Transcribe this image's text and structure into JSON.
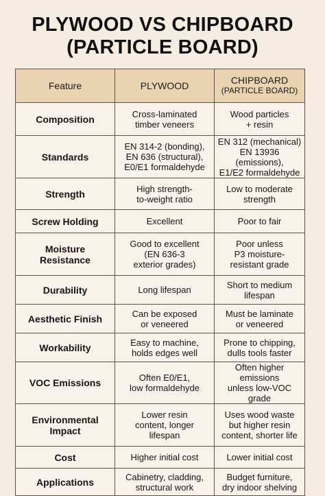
{
  "title": {
    "line1": "PLYWOOD VS CHIPBOARD",
    "line2": "(PARTICLE BOARD)"
  },
  "table": {
    "headers": {
      "feature": "Feature",
      "plywood": "PLYWOOD",
      "chipboard": "CHIPBOARD",
      "chipboard_sub": "(PARTICLE BOARD)"
    },
    "rows": [
      {
        "feature": "Composition",
        "plywood": "Cross-laminated\ntimber veneers",
        "chipboard": "Wood particles\n+ resin"
      },
      {
        "feature": "Standards",
        "plywood": "EN 314-2 (bonding),\nEN 636 (structural),\nE0/E1 formaldehyde",
        "chipboard": "EN 312 (mechanical)\nEN 13936 (emissions),\nE1/E2 formaldehyde"
      },
      {
        "feature": "Strength",
        "plywood": "High strength-\nto-weight ratio",
        "chipboard": "Low to moderate\nstrength"
      },
      {
        "feature": "Screw Holding",
        "plywood": "Excellent",
        "chipboard": "Poor to fair"
      },
      {
        "feature": "Moisture\nResistance",
        "plywood": "Good to excellent\n(EN 636-3\nexterior grades)",
        "chipboard": "Poor unless\nP3 moisture-\nresistant grade"
      },
      {
        "feature": "Durability",
        "plywood": "Long lifespan",
        "chipboard": "Short to medium\nlifespan"
      },
      {
        "feature": "Aesthetic Finish",
        "plywood": "Can be exposed\nor veneered",
        "chipboard": "Must be laminate\nor veneered"
      },
      {
        "feature": "Workability",
        "plywood": "Easy to machine,\nholds edges well",
        "chipboard": "Prone to chipping,\ndulls tools faster"
      },
      {
        "feature": "VOC Emissions",
        "plywood": "Often E0/E1,\nlow formaldehyde",
        "chipboard": "Often higher emissions\nunless low-VOC grade"
      },
      {
        "feature": "Environmental\nImpact",
        "plywood": "Lower resin\ncontent, longer\nlifespan",
        "chipboard": "Uses wood waste\nbut higher resin\ncontent, shorter life"
      },
      {
        "feature": "Cost",
        "plywood": "Higher initial cost",
        "chipboard": "Lower initial cost"
      },
      {
        "feature": "Applications",
        "plywood": "Cabinetry, cladding,\nstructural work",
        "chipboard": "Budget furniture,\ndry indoor shelving"
      }
    ]
  }
}
